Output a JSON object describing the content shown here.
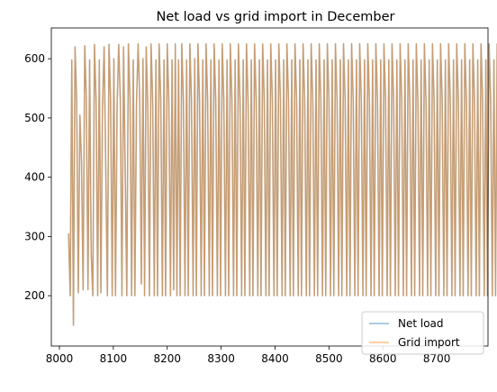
{
  "chart_data": {
    "type": "line",
    "title": "Net load vs grid import in December",
    "xlabel": "",
    "ylabel": "",
    "xlim": [
      7985,
      8795
    ],
    "ylim": [
      115,
      652
    ],
    "x_ticks": [
      8000,
      8100,
      8200,
      8300,
      8400,
      8500,
      8600,
      8700
    ],
    "y_ticks": [
      200,
      300,
      400,
      500,
      600
    ],
    "grid": false,
    "legend_position": "lower-right",
    "x_start": 8017,
    "x_step": 3,
    "series": [
      {
        "name": "Net load",
        "color": "#1f77b4",
        "values": [
          305,
          200,
          598,
          150,
          620,
          530,
          205,
          505,
          425,
          210,
          622,
          530,
          210,
          598,
          270,
          200,
          624,
          530,
          200,
          598,
          205,
          522,
          620,
          410,
          200,
          624,
          530,
          200,
          600,
          200,
          518,
          624,
          530,
          200,
          620,
          410,
          200,
          625,
          530,
          200,
          598,
          200,
          522,
          625,
          530,
          220,
          600,
          200,
          620,
          520,
          200,
          625,
          530,
          200,
          598,
          200,
          625,
          530,
          200,
          598,
          200,
          625,
          530,
          200,
          598,
          210,
          625,
          200,
          598,
          200,
          625,
          530,
          200,
          598,
          200,
          625,
          530,
          200,
          600,
          200,
          625,
          530,
          200,
          598,
          200,
          625,
          530,
          200,
          598,
          200,
          625,
          530,
          200,
          598,
          200,
          625,
          530,
          200,
          598,
          200,
          625,
          530,
          200,
          598,
          200,
          625,
          530,
          200,
          598,
          200,
          625,
          530,
          200,
          598,
          200,
          625,
          530,
          200,
          598,
          200,
          625,
          530,
          200,
          598,
          200,
          625,
          530,
          200,
          598,
          200,
          625,
          530,
          200,
          598,
          200,
          625,
          530,
          200,
          598,
          200,
          625,
          530,
          200,
          598,
          200,
          625,
          530,
          200,
          598,
          200,
          625,
          530,
          200,
          598,
          200,
          625,
          530,
          200,
          598,
          200,
          625,
          530,
          200,
          598,
          200,
          625,
          530,
          200,
          598,
          200,
          625,
          530,
          200,
          598,
          200,
          625,
          530,
          200,
          598,
          200,
          625,
          530,
          200,
          598,
          200,
          625,
          530,
          200,
          598,
          200,
          625,
          530,
          200,
          598,
          200,
          625,
          530,
          200,
          598,
          200,
          625,
          530,
          200,
          598,
          200,
          625,
          530,
          200,
          598,
          200,
          625,
          530,
          200,
          598,
          200,
          625,
          530,
          200,
          598,
          200,
          625,
          530,
          200,
          598,
          200,
          625,
          530,
          200,
          598,
          200,
          625,
          530,
          200,
          598,
          200,
          625,
          530,
          200,
          598,
          200,
          625,
          530,
          200,
          598,
          200,
          625,
          530,
          200,
          598,
          200,
          625,
          530,
          200,
          598,
          200,
          625,
          530,
          200,
          598,
          200,
          625,
          530,
          200,
          598,
          200,
          625,
          530,
          200,
          598,
          200,
          625,
          525,
          535
        ]
      },
      {
        "name": "Grid import",
        "color": "#ff7f0e",
        "values": [
          305,
          200,
          598,
          150,
          620,
          530,
          205,
          505,
          425,
          210,
          622,
          530,
          210,
          598,
          270,
          200,
          624,
          530,
          200,
          598,
          205,
          522,
          620,
          410,
          200,
          624,
          530,
          200,
          600,
          200,
          518,
          624,
          530,
          200,
          620,
          410,
          200,
          625,
          530,
          200,
          598,
          200,
          522,
          625,
          530,
          220,
          600,
          200,
          620,
          520,
          200,
          625,
          530,
          200,
          598,
          200,
          625,
          530,
          200,
          598,
          200,
          625,
          530,
          200,
          598,
          210,
          625,
          200,
          598,
          200,
          625,
          530,
          200,
          598,
          200,
          625,
          530,
          200,
          600,
          200,
          625,
          530,
          200,
          598,
          200,
          625,
          530,
          200,
          598,
          200,
          625,
          530,
          200,
          598,
          200,
          625,
          530,
          200,
          598,
          200,
          625,
          530,
          200,
          598,
          200,
          625,
          530,
          200,
          598,
          200,
          625,
          530,
          200,
          598,
          200,
          625,
          530,
          200,
          598,
          200,
          625,
          530,
          200,
          598,
          200,
          625,
          530,
          200,
          598,
          200,
          625,
          530,
          200,
          598,
          200,
          625,
          530,
          200,
          598,
          200,
          625,
          530,
          200,
          598,
          200,
          625,
          530,
          200,
          598,
          200,
          625,
          530,
          200,
          598,
          200,
          625,
          530,
          200,
          598,
          200,
          625,
          530,
          200,
          598,
          200,
          625,
          530,
          200,
          598,
          200,
          625,
          530,
          200,
          598,
          200,
          625,
          530,
          200,
          598,
          200,
          625,
          530,
          200,
          598,
          200,
          625,
          530,
          200,
          598,
          200,
          625,
          530,
          200,
          598,
          200,
          625,
          530,
          200,
          598,
          200,
          625,
          530,
          200,
          598,
          200,
          625,
          530,
          200,
          598,
          200,
          625,
          530,
          200,
          598,
          200,
          625,
          530,
          200,
          598,
          200,
          625,
          530,
          200,
          598,
          200,
          625,
          530,
          200,
          598,
          200,
          625,
          530,
          200,
          598,
          200,
          625,
          530,
          200,
          598,
          200,
          625,
          530,
          200,
          598,
          200,
          625,
          530,
          200,
          598,
          200,
          625,
          530,
          200,
          598,
          200,
          625,
          530,
          200,
          598,
          200,
          625,
          530,
          200,
          598,
          200,
          625,
          530,
          200,
          598,
          200,
          625,
          525,
          535
        ]
      }
    ]
  }
}
